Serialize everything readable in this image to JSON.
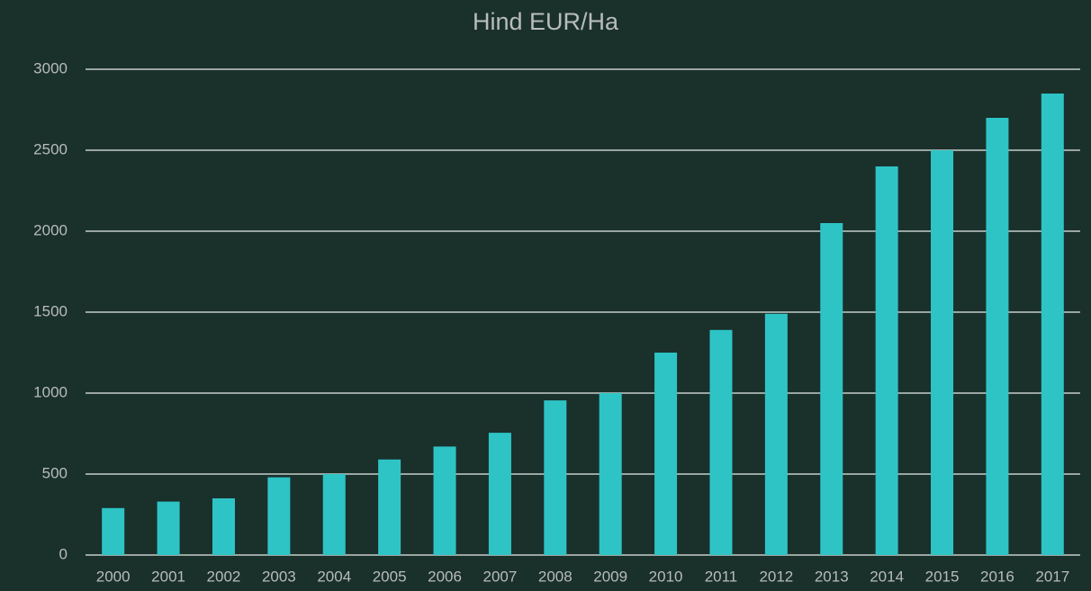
{
  "chart_data": {
    "type": "bar",
    "title": "Hind EUR/Ha",
    "categories": [
      "2000",
      "2001",
      "2002",
      "2003",
      "2004",
      "2005",
      "2006",
      "2007",
      "2008",
      "2009",
      "2010",
      "2011",
      "2012",
      "2013",
      "2014",
      "2015",
      "2016",
      "2017"
    ],
    "values": [
      290,
      330,
      350,
      480,
      500,
      590,
      670,
      755,
      955,
      1000,
      1250,
      1390,
      1490,
      2050,
      2400,
      2500,
      2700,
      2850
    ],
    "color": "#2ec4c6",
    "ylim": [
      0,
      3000
    ],
    "yticks": [
      0,
      500,
      1000,
      1500,
      2000,
      2500,
      3000
    ],
    "grid": true
  }
}
